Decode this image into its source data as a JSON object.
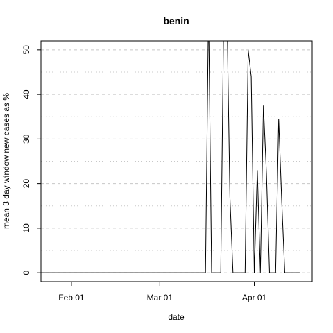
{
  "chart_data": {
    "type": "line",
    "title": "benin",
    "xlabel": "date",
    "ylabel": "mean  3  day window new cases as %",
    "x_ticks": [
      "Feb 01",
      "Mar 01",
      "Apr 01"
    ],
    "y_ticks": [
      0,
      10,
      20,
      30,
      40,
      50
    ],
    "xlim": [
      "2020-01-22",
      "2020-04-20"
    ],
    "ylim": [
      -2,
      52
    ],
    "grid": true,
    "series": [
      {
        "x": [
          "2020-01-22",
          "2020-03-16",
          "2020-03-17",
          "2020-03-18",
          "2020-03-19",
          "2020-03-20",
          "2020-03-21",
          "2020-03-22",
          "2020-03-23",
          "2020-03-24",
          "2020-03-25",
          "2020-03-26",
          "2020-03-27",
          "2020-03-28",
          "2020-03-29",
          "2020-03-30",
          "2020-03-31",
          "2020-04-01",
          "2020-04-02",
          "2020-04-03",
          "2020-04-04",
          "2020-04-05",
          "2020-04-06",
          "2020-04-07",
          "2020-04-08",
          "2020-04-09",
          "2020-04-10",
          "2020-04-11",
          "2020-04-12",
          "2020-04-13",
          "2020-04-14",
          "2020-04-15",
          "2020-04-16"
        ],
        "values": [
          0,
          0,
          60,
          0,
          0,
          0,
          0,
          60,
          60,
          17,
          0,
          0,
          0,
          0,
          0,
          50,
          44,
          0,
          23,
          0,
          37.5,
          22,
          0,
          0,
          0,
          34.5,
          16,
          0,
          0,
          0,
          0,
          0,
          0
        ]
      }
    ],
    "colors": {
      "line": "#000000",
      "grid": "#c8c8c8",
      "box": "#000000"
    }
  }
}
